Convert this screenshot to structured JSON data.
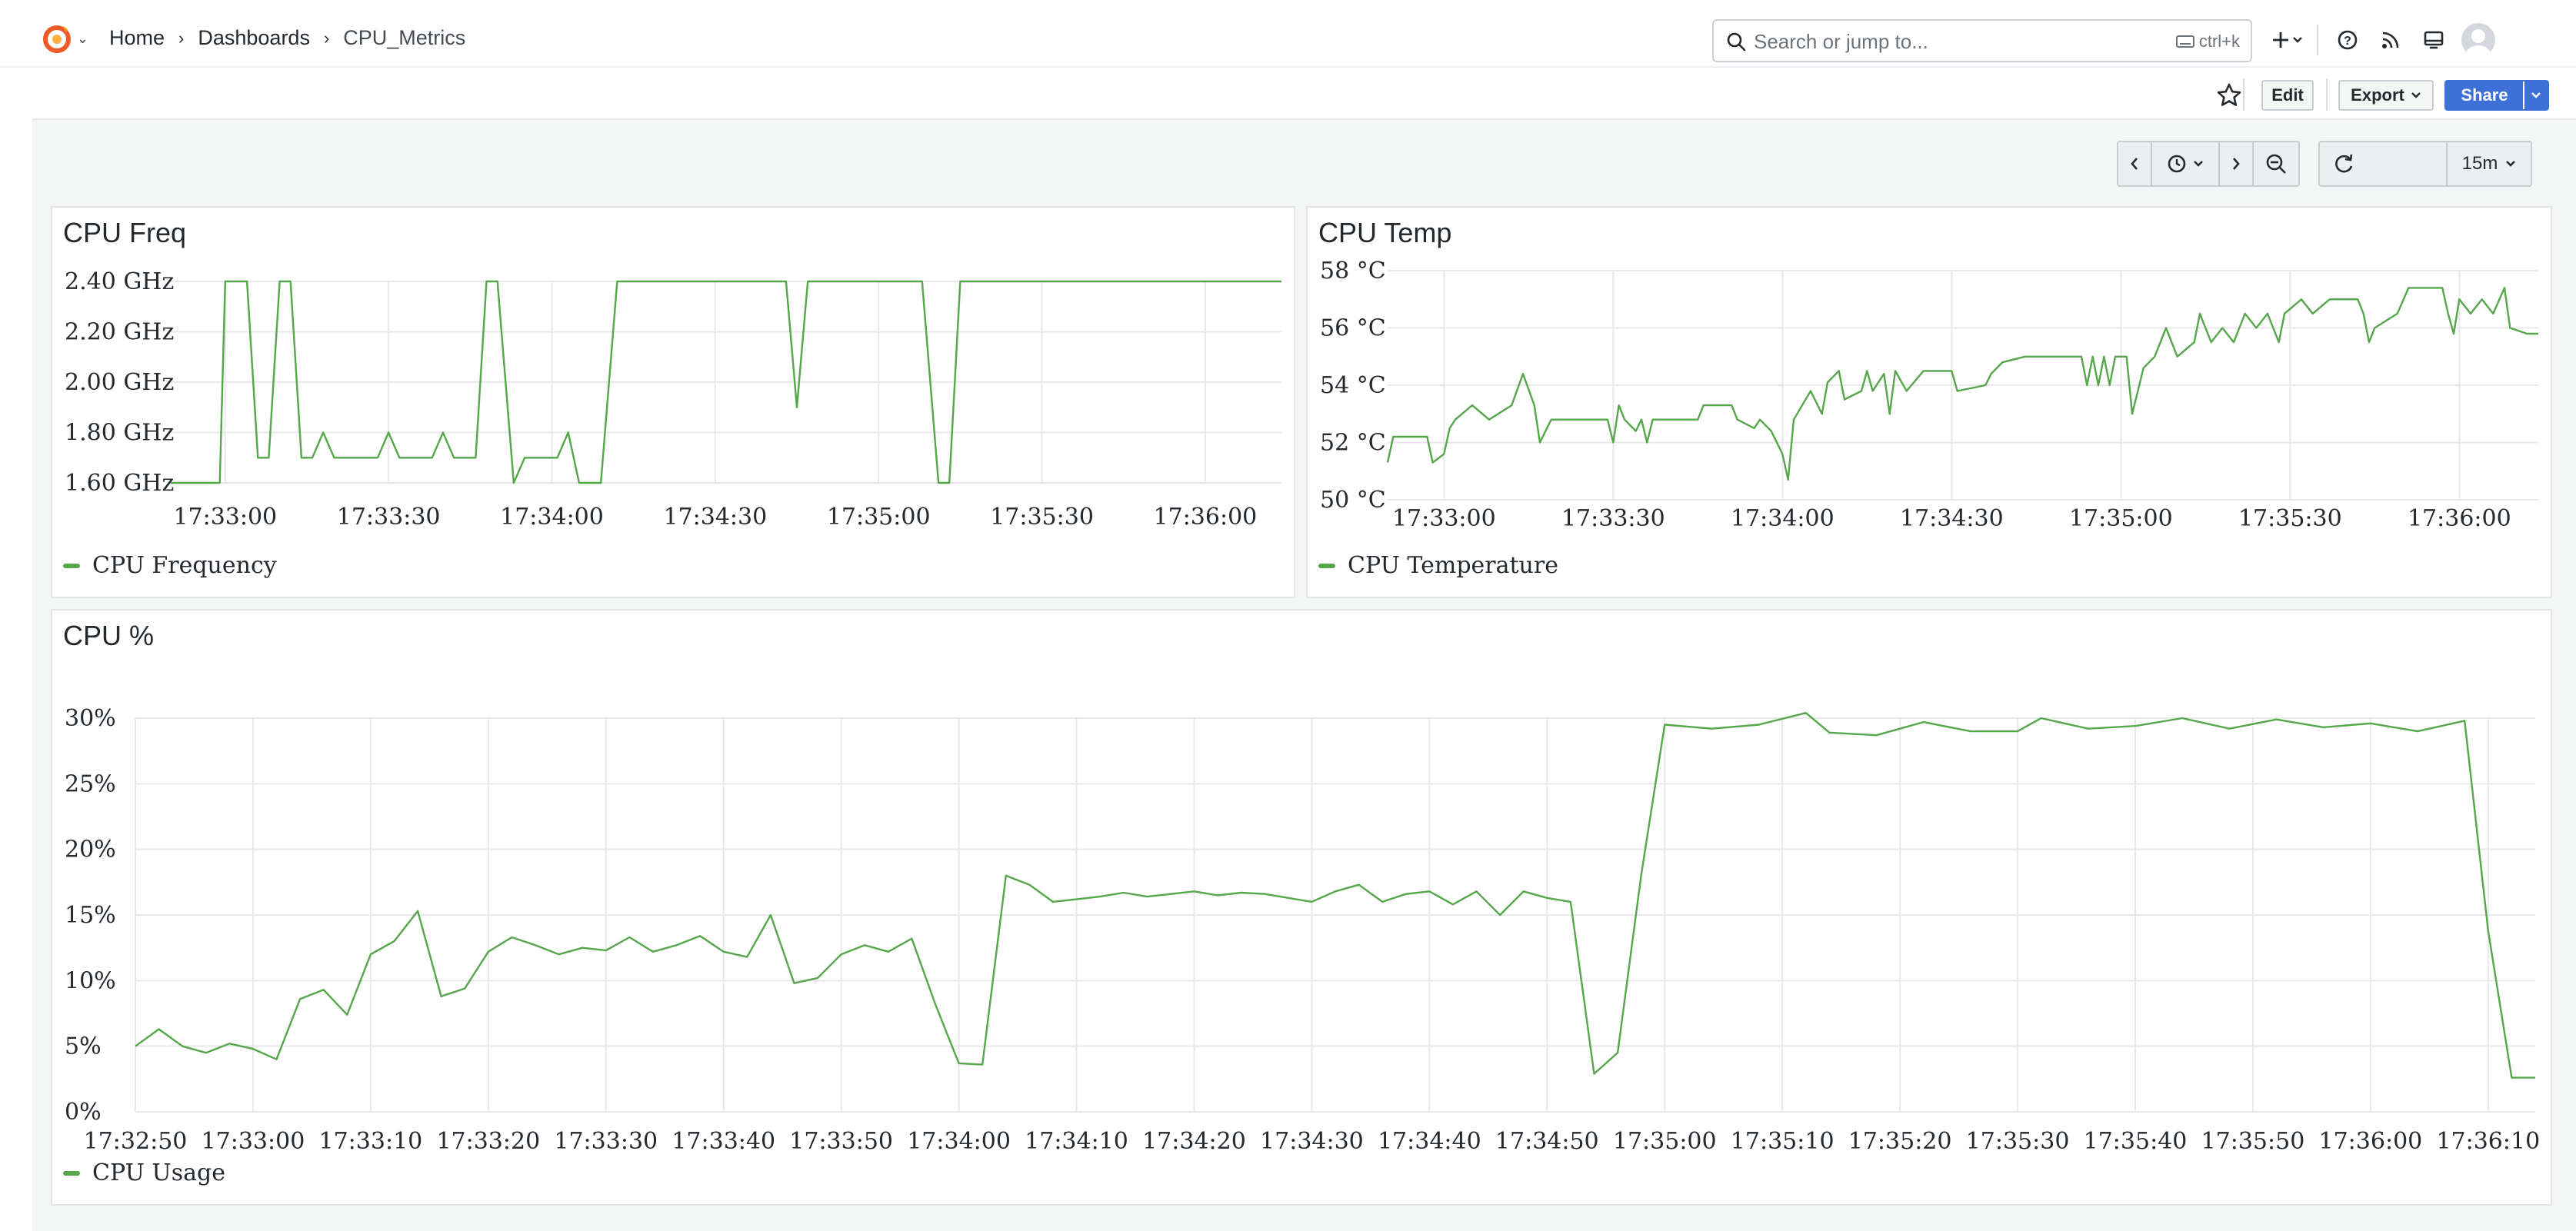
{
  "nav": {
    "breadcrumbs": [
      "Home",
      "Dashboards",
      "CPU_Metrics"
    ],
    "search_placeholder": "Search or jump to...",
    "search_shortcut": "ctrl+k"
  },
  "toolbar": {
    "edit_label": "Edit",
    "export_label": "Export",
    "share_label": "Share"
  },
  "time_controls": {
    "range": "15m"
  },
  "colors": {
    "series": "#56a64b",
    "share_button": "#3d71d9",
    "logo": "#f05a28"
  },
  "panels": {
    "freq": {
      "title": "CPU Freq",
      "legend": "CPU Frequency"
    },
    "temp": {
      "title": "CPU Temp",
      "legend": "CPU Temperature"
    },
    "cpu": {
      "title": "CPU %",
      "legend": "CPU Usage"
    }
  },
  "chart_data": [
    {
      "type": "line",
      "title": "CPU Freq",
      "xlim": [
        "17:32:50",
        "17:36:14"
      ],
      "x_ticks": [
        "17:33:00",
        "17:33:30",
        "17:34:00",
        "17:34:30",
        "17:35:00",
        "17:35:30",
        "17:36:00"
      ],
      "y_ticks": [
        "1.60 GHz",
        "1.80 GHz",
        "2.00 GHz",
        "2.20 GHz",
        "2.40 GHz"
      ],
      "ylim": [
        1.6,
        2.4
      ],
      "grid": true,
      "legend": "bottom-left",
      "series": [
        {
          "name": "CPU Frequency",
          "points": [
            [
              "17:32:50",
              1.6
            ],
            [
              "17:32:59",
              1.6
            ],
            [
              "17:33:00",
              2.4
            ],
            [
              "17:33:04",
              2.4
            ],
            [
              "17:33:06",
              1.7
            ],
            [
              "17:33:08",
              1.7
            ],
            [
              "17:33:10",
              2.4
            ],
            [
              "17:33:12",
              2.4
            ],
            [
              "17:33:14",
              1.7
            ],
            [
              "17:33:16",
              1.7
            ],
            [
              "17:33:18",
              1.8
            ],
            [
              "17:33:20",
              1.7
            ],
            [
              "17:33:24",
              1.7
            ],
            [
              "17:33:28",
              1.7
            ],
            [
              "17:33:30",
              1.8
            ],
            [
              "17:33:32",
              1.7
            ],
            [
              "17:33:38",
              1.7
            ],
            [
              "17:33:40",
              1.8
            ],
            [
              "17:33:42",
              1.7
            ],
            [
              "17:33:46",
              1.7
            ],
            [
              "17:33:48",
              2.4
            ],
            [
              "17:33:50",
              2.4
            ],
            [
              "17:33:53",
              1.6
            ],
            [
              "17:33:55",
              1.7
            ],
            [
              "17:34:01",
              1.7
            ],
            [
              "17:34:03",
              1.8
            ],
            [
              "17:34:05",
              1.6
            ],
            [
              "17:34:09",
              1.6
            ],
            [
              "17:34:12",
              2.4
            ],
            [
              "17:34:43",
              2.4
            ],
            [
              "17:34:45",
              1.9
            ],
            [
              "17:34:47",
              2.4
            ],
            [
              "17:35:08",
              2.4
            ],
            [
              "17:35:11",
              1.6
            ],
            [
              "17:35:13",
              1.6
            ],
            [
              "17:35:15",
              2.4
            ],
            [
              "17:36:14",
              2.4
            ]
          ]
        }
      ]
    },
    {
      "type": "line",
      "title": "CPU Temp",
      "xlim": [
        "17:32:50",
        "17:36:14"
      ],
      "x_ticks": [
        "17:33:00",
        "17:33:30",
        "17:34:00",
        "17:34:30",
        "17:35:00",
        "17:35:30",
        "17:36:00"
      ],
      "y_ticks": [
        "50 °C",
        "52 °C",
        "54 °C",
        "56 °C",
        "58 °C"
      ],
      "ylim": [
        50,
        58
      ],
      "grid": true,
      "legend": "bottom-left",
      "series": [
        {
          "name": "CPU Temperature",
          "points": [
            [
              "17:32:50",
              51.3
            ],
            [
              "17:32:51",
              52.2
            ],
            [
              "17:32:57",
              52.2
            ],
            [
              "17:32:58",
              51.3
            ],
            [
              "17:33:00",
              51.6
            ],
            [
              "17:33:01",
              52.5
            ],
            [
              "17:33:02",
              52.8
            ],
            [
              "17:33:05",
              53.3
            ],
            [
              "17:33:08",
              52.8
            ],
            [
              "17:33:12",
              53.3
            ],
            [
              "17:33:14",
              54.4
            ],
            [
              "17:33:16",
              53.3
            ],
            [
              "17:33:17",
              52.0
            ],
            [
              "17:33:19",
              52.8
            ],
            [
              "17:33:29",
              52.8
            ],
            [
              "17:33:30",
              52.0
            ],
            [
              "17:33:31",
              53.3
            ],
            [
              "17:33:32",
              52.8
            ],
            [
              "17:33:34",
              52.4
            ],
            [
              "17:33:35",
              52.8
            ],
            [
              "17:33:36",
              52.0
            ],
            [
              "17:33:37",
              52.8
            ],
            [
              "17:33:45",
              52.8
            ],
            [
              "17:33:46",
              53.3
            ],
            [
              "17:33:51",
              53.3
            ],
            [
              "17:33:52",
              52.8
            ],
            [
              "17:33:55",
              52.5
            ],
            [
              "17:33:56",
              52.8
            ],
            [
              "17:33:58",
              52.4
            ],
            [
              "17:33:59",
              52.0
            ],
            [
              "17:34:00",
              51.6
            ],
            [
              "17:34:01",
              50.7
            ],
            [
              "17:34:02",
              52.8
            ],
            [
              "17:34:05",
              53.8
            ],
            [
              "17:34:07",
              53.0
            ],
            [
              "17:34:08",
              54.1
            ],
            [
              "17:34:10",
              54.5
            ],
            [
              "17:34:11",
              53.5
            ],
            [
              "17:34:14",
              53.8
            ],
            [
              "17:34:15",
              54.5
            ],
            [
              "17:34:16",
              53.8
            ],
            [
              "17:34:18",
              54.4
            ],
            [
              "17:34:19",
              53.0
            ],
            [
              "17:34:20",
              54.5
            ],
            [
              "17:34:22",
              53.8
            ],
            [
              "17:34:25",
              54.5
            ],
            [
              "17:34:30",
              54.5
            ],
            [
              "17:34:31",
              53.8
            ],
            [
              "17:34:36",
              54.0
            ],
            [
              "17:34:37",
              54.4
            ],
            [
              "17:34:39",
              54.8
            ],
            [
              "17:34:43",
              55.0
            ],
            [
              "17:34:53",
              55.0
            ],
            [
              "17:34:54",
              54.0
            ],
            [
              "17:34:55",
              55.0
            ],
            [
              "17:34:56",
              54.0
            ],
            [
              "17:34:57",
              55.0
            ],
            [
              "17:34:58",
              54.0
            ],
            [
              "17:34:59",
              55.0
            ],
            [
              "17:35:01",
              55.0
            ],
            [
              "17:35:02",
              53.0
            ],
            [
              "17:35:04",
              54.6
            ],
            [
              "17:35:06",
              55.0
            ],
            [
              "17:35:08",
              56.0
            ],
            [
              "17:35:10",
              55.0
            ],
            [
              "17:35:13",
              55.5
            ],
            [
              "17:35:14",
              56.5
            ],
            [
              "17:35:16",
              55.5
            ],
            [
              "17:35:18",
              56.0
            ],
            [
              "17:35:20",
              55.5
            ],
            [
              "17:35:22",
              56.5
            ],
            [
              "17:35:24",
              56.0
            ],
            [
              "17:35:26",
              56.5
            ],
            [
              "17:35:28",
              55.5
            ],
            [
              "17:35:29",
              56.5
            ],
            [
              "17:35:32",
              57.0
            ],
            [
              "17:35:34",
              56.5
            ],
            [
              "17:35:37",
              57.0
            ],
            [
              "17:35:42",
              57.0
            ],
            [
              "17:35:43",
              56.5
            ],
            [
              "17:35:44",
              55.5
            ],
            [
              "17:35:45",
              56.0
            ],
            [
              "17:35:49",
              56.5
            ],
            [
              "17:35:51",
              57.4
            ],
            [
              "17:35:57",
              57.4
            ],
            [
              "17:35:58",
              56.5
            ],
            [
              "17:35:59",
              55.8
            ],
            [
              "17:36:00",
              57.0
            ],
            [
              "17:36:02",
              56.5
            ],
            [
              "17:36:04",
              57.0
            ],
            [
              "17:36:06",
              56.5
            ],
            [
              "17:36:08",
              57.4
            ],
            [
              "17:36:09",
              56.0
            ],
            [
              "17:36:12",
              55.8
            ],
            [
              "17:36:14",
              55.8
            ]
          ]
        }
      ]
    },
    {
      "type": "line",
      "title": "CPU %",
      "xlim": [
        "17:32:50",
        "17:36:14"
      ],
      "x_ticks": [
        "17:32:50",
        "17:33:00",
        "17:33:10",
        "17:33:20",
        "17:33:30",
        "17:33:40",
        "17:33:50",
        "17:34:00",
        "17:34:10",
        "17:34:20",
        "17:34:30",
        "17:34:40",
        "17:34:50",
        "17:35:00",
        "17:35:10",
        "17:35:20",
        "17:35:30",
        "17:35:40",
        "17:35:50",
        "17:36:00",
        "17:36:10"
      ],
      "y_ticks": [
        "0%",
        "5%",
        "10%",
        "15%",
        "20%",
        "25%",
        "30%"
      ],
      "ylim": [
        0,
        30
      ],
      "grid": true,
      "legend": "bottom-left",
      "series": [
        {
          "name": "CPU Usage",
          "points": [
            [
              "17:32:50",
              5.0
            ],
            [
              "17:32:52",
              6.3
            ],
            [
              "17:32:54",
              5.0
            ],
            [
              "17:32:56",
              4.5
            ],
            [
              "17:32:58",
              5.2
            ],
            [
              "17:33:00",
              4.8
            ],
            [
              "17:33:02",
              4.0
            ],
            [
              "17:33:04",
              8.6
            ],
            [
              "17:33:06",
              9.3
            ],
            [
              "17:33:08",
              7.4
            ],
            [
              "17:33:10",
              12.0
            ],
            [
              "17:33:12",
              13.0
            ],
            [
              "17:33:14",
              15.3
            ],
            [
              "17:33:16",
              8.8
            ],
            [
              "17:33:18",
              9.4
            ],
            [
              "17:33:20",
              12.2
            ],
            [
              "17:33:22",
              13.3
            ],
            [
              "17:33:24",
              12.7
            ],
            [
              "17:33:26",
              12.0
            ],
            [
              "17:33:28",
              12.5
            ],
            [
              "17:33:30",
              12.3
            ],
            [
              "17:33:32",
              13.3
            ],
            [
              "17:33:34",
              12.2
            ],
            [
              "17:33:36",
              12.7
            ],
            [
              "17:33:38",
              13.4
            ],
            [
              "17:33:40",
              12.2
            ],
            [
              "17:33:42",
              11.8
            ],
            [
              "17:33:44",
              15.0
            ],
            [
              "17:33:46",
              9.8
            ],
            [
              "17:33:48",
              10.2
            ],
            [
              "17:33:50",
              12.0
            ],
            [
              "17:33:52",
              12.7
            ],
            [
              "17:33:54",
              12.2
            ],
            [
              "17:33:56",
              13.2
            ],
            [
              "17:33:58",
              8.2
            ],
            [
              "17:34:00",
              3.7
            ],
            [
              "17:34:02",
              3.6
            ],
            [
              "17:34:04",
              18.0
            ],
            [
              "17:34:06",
              17.3
            ],
            [
              "17:34:08",
              16.0
            ],
            [
              "17:34:12",
              16.4
            ],
            [
              "17:34:14",
              16.7
            ],
            [
              "17:34:16",
              16.4
            ],
            [
              "17:34:18",
              16.6
            ],
            [
              "17:34:20",
              16.8
            ],
            [
              "17:34:22",
              16.5
            ],
            [
              "17:34:24",
              16.7
            ],
            [
              "17:34:26",
              16.6
            ],
            [
              "17:34:28",
              16.3
            ],
            [
              "17:34:30",
              16.0
            ],
            [
              "17:34:32",
              16.8
            ],
            [
              "17:34:34",
              17.3
            ],
            [
              "17:34:36",
              16.0
            ],
            [
              "17:34:38",
              16.6
            ],
            [
              "17:34:40",
              16.8
            ],
            [
              "17:34:42",
              15.8
            ],
            [
              "17:34:44",
              16.8
            ],
            [
              "17:34:46",
              15.0
            ],
            [
              "17:34:48",
              16.8
            ],
            [
              "17:34:50",
              16.3
            ],
            [
              "17:34:52",
              16.0
            ],
            [
              "17:34:54",
              2.9
            ],
            [
              "17:34:56",
              4.5
            ],
            [
              "17:34:58",
              18.0
            ],
            [
              "17:35:00",
              29.5
            ],
            [
              "17:35:04",
              29.2
            ],
            [
              "17:35:08",
              29.5
            ],
            [
              "17:35:12",
              30.4
            ],
            [
              "17:35:14",
              28.9
            ],
            [
              "17:35:18",
              28.7
            ],
            [
              "17:35:20",
              29.2
            ],
            [
              "17:35:22",
              29.7
            ],
            [
              "17:35:26",
              29.0
            ],
            [
              "17:35:30",
              29.0
            ],
            [
              "17:35:32",
              30.0
            ],
            [
              "17:35:36",
              29.2
            ],
            [
              "17:35:40",
              29.4
            ],
            [
              "17:35:44",
              30.0
            ],
            [
              "17:35:48",
              29.2
            ],
            [
              "17:35:52",
              29.9
            ],
            [
              "17:35:56",
              29.3
            ],
            [
              "17:36:00",
              29.6
            ],
            [
              "17:36:04",
              29.0
            ],
            [
              "17:36:08",
              29.8
            ],
            [
              "17:36:10",
              13.8
            ],
            [
              "17:36:12",
              2.6
            ],
            [
              "17:36:14",
              2.6
            ]
          ]
        }
      ]
    }
  ]
}
